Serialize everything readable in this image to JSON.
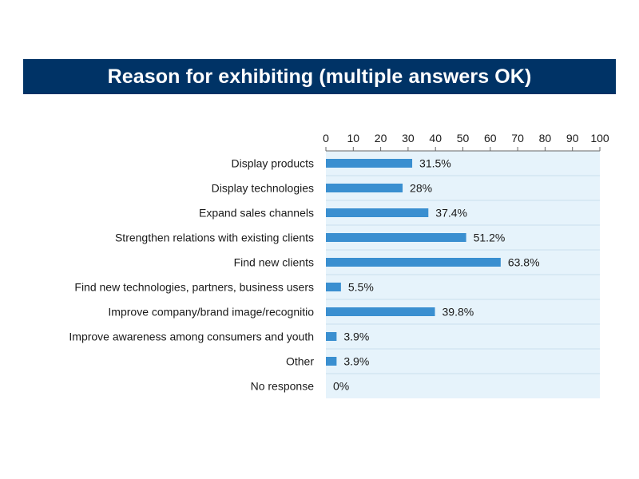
{
  "chart_data": {
    "type": "bar",
    "orientation": "horizontal",
    "title": "Reason for exhibiting (multiple answers OK)",
    "categories": [
      "Display products",
      "Display technologies",
      "Expand sales channels",
      "Strengthen relations with existing clients",
      "Find new clients",
      "Find new technologies, partners, business users",
      "Improve company/brand image/recognitio",
      "Improve awareness among consumers and youth",
      "Other",
      "No response"
    ],
    "values": [
      31.5,
      28,
      37.4,
      51.2,
      63.8,
      5.5,
      39.8,
      3.9,
      3.9,
      0
    ],
    "value_labels": [
      "31.5%",
      "28%",
      "37.4%",
      "51.2%",
      "63.8%",
      "5.5%",
      "39.8%",
      "3.9%",
      "3.9%",
      "0%"
    ],
    "xlim": [
      0,
      100
    ],
    "xticks": [
      "0",
      "10",
      "20",
      "30",
      "40",
      "50",
      "60",
      "70",
      "80",
      "90",
      "100"
    ],
    "axis_position": "top",
    "grid": "horizontal row separators",
    "colors": {
      "bar": "#3a8fd0",
      "plot_background": "#e6f3fb",
      "grid": "#c9dfee",
      "title_background": "#003366",
      "title_text": "#ffffff"
    }
  }
}
